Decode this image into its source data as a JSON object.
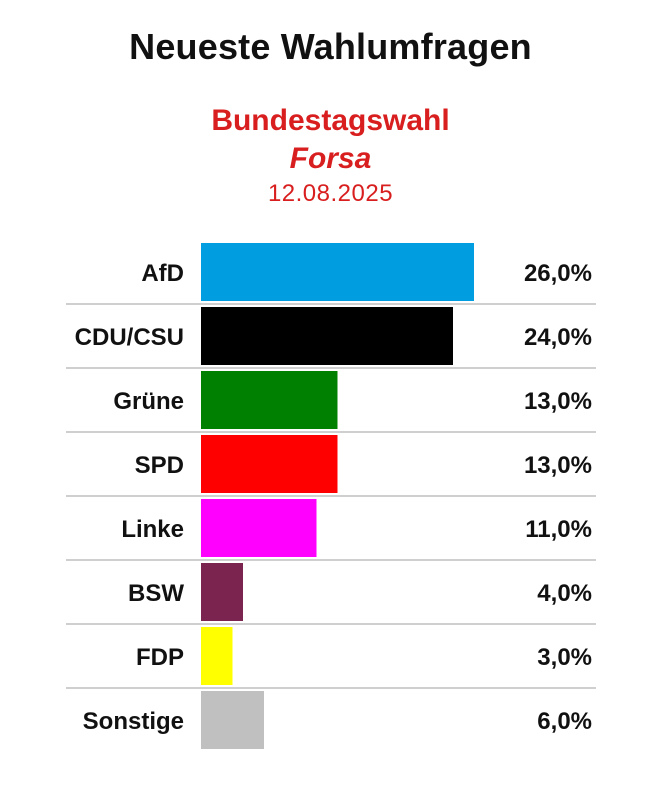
{
  "header": {
    "title": "Neueste Wahlumfragen",
    "election": "Bundestagswahl",
    "institute": "Forsa",
    "date": "12.08.2025"
  },
  "chart_data": {
    "type": "bar",
    "orientation": "horizontal",
    "categories": [
      "AfD",
      "CDU/CSU",
      "Grüne",
      "SPD",
      "Linke",
      "BSW",
      "FDP",
      "Sonstige"
    ],
    "values": [
      26.0,
      24.0,
      13.0,
      13.0,
      11.0,
      4.0,
      3.0,
      6.0
    ],
    "value_labels": [
      "26,0%",
      "24,0%",
      "13,0%",
      "13,0%",
      "11,0%",
      "4,0%",
      "3,0%",
      "6,0%"
    ],
    "colors": [
      "#009ee0",
      "#000000",
      "#008000",
      "#ff0000",
      "#ff00ff",
      "#7b2450",
      "#ffff00",
      "#c0c0c0"
    ],
    "unit": "%",
    "grid": false,
    "legend": "none"
  }
}
